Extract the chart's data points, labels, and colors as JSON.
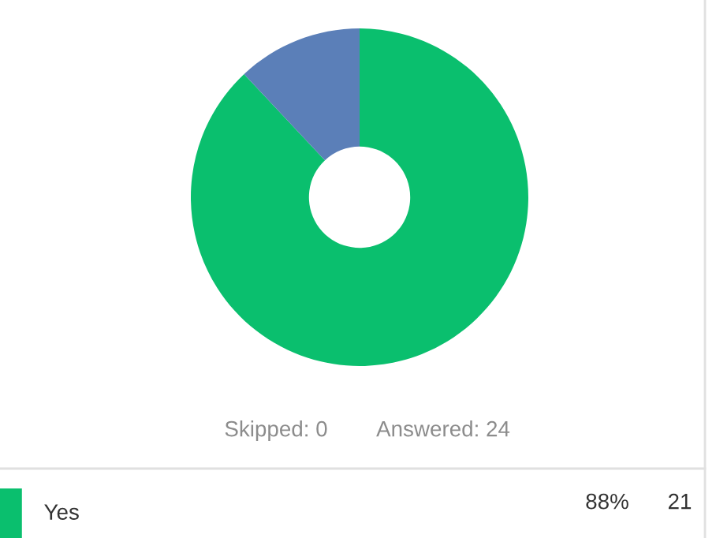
{
  "chart_data": {
    "type": "donut",
    "categories": [
      "Yes",
      null
    ],
    "values": [
      88,
      12
    ],
    "colors": [
      "#0abf6e",
      "#5b7fb8"
    ],
    "value_labels": [
      "88%",
      null
    ],
    "legend": "bottom",
    "annotations": [
      "Skipped: 0",
      "Answered: 24",
      "21"
    ]
  }
}
